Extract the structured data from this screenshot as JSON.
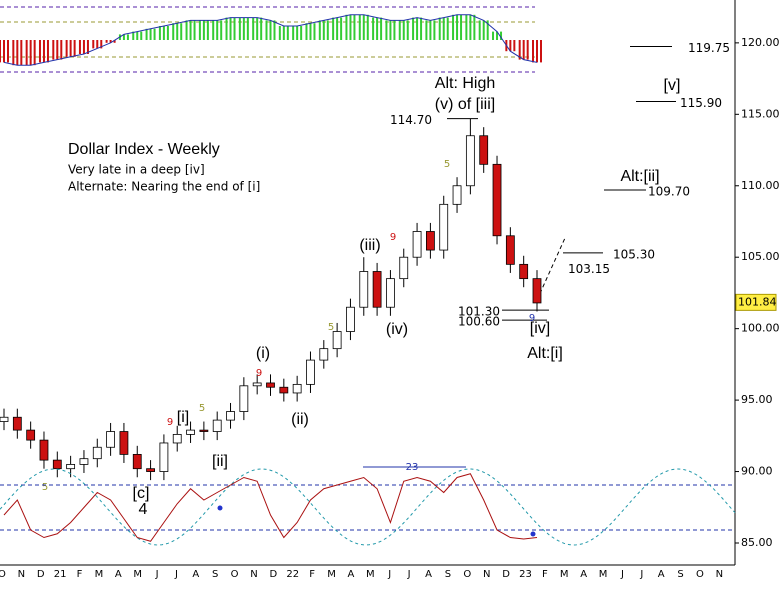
{
  "chart_data": {
    "type": "candlestick",
    "title": "Dollar Index - Weekly",
    "subtitle_lines": [
      "Very late in a deep [iv]",
      "Alternate: Nearing the end of [i]"
    ],
    "x_labels": [
      "O",
      "N",
      "D",
      "21",
      "F",
      "M",
      "A",
      "M",
      "J",
      "J",
      "A",
      "S",
      "O",
      "N",
      "D",
      "22",
      "F",
      "M",
      "A",
      "M",
      "J",
      "J",
      "A",
      "S",
      "O",
      "N",
      "D",
      "23",
      "F",
      "M",
      "A",
      "M",
      "J",
      "J",
      "A",
      "S",
      "O",
      "N"
    ],
    "candles": {
      "open": [
        93.5,
        93.8,
        92.9,
        92.2,
        90.8,
        90.2,
        90.5,
        90.9,
        91.7,
        92.8,
        91.2,
        90.2,
        90.0,
        92.0,
        92.6,
        92.9,
        92.8,
        93.6,
        94.2,
        96.0,
        96.2,
        95.9,
        95.5,
        96.1,
        97.8,
        98.6,
        99.8,
        101.5,
        104.0,
        101.5,
        103.5,
        105.0,
        106.8,
        105.5,
        108.7,
        110.0,
        113.5,
        111.5,
        106.5,
        104.5,
        103.5
      ],
      "high": [
        94.4,
        94.4,
        93.5,
        92.8,
        91.4,
        91.1,
        91.5,
        92.3,
        93.4,
        93.4,
        91.8,
        90.8,
        92.6,
        93.2,
        93.5,
        93.5,
        94.2,
        94.8,
        96.6,
        96.8,
        96.8,
        96.5,
        96.7,
        98.4,
        99.2,
        100.4,
        102.1,
        105.0,
        104.6,
        104.1,
        105.6,
        107.4,
        107.4,
        109.3,
        110.6,
        114.7,
        114.1,
        112.1,
        107.1,
        105.1,
        104.1
      ],
      "low": [
        92.9,
        92.3,
        91.6,
        90.2,
        89.6,
        89.6,
        89.9,
        90.3,
        91.1,
        90.6,
        89.6,
        89.4,
        89.4,
        91.4,
        92.0,
        92.2,
        92.2,
        93.0,
        93.6,
        95.4,
        95.3,
        94.9,
        94.9,
        95.5,
        97.2,
        98.0,
        99.2,
        100.9,
        100.9,
        100.9,
        102.9,
        104.4,
        104.9,
        104.9,
        108.1,
        109.4,
        110.9,
        105.9,
        103.9,
        102.9,
        101.2
      ],
      "close": [
        93.8,
        92.9,
        92.2,
        90.8,
        90.2,
        90.5,
        90.9,
        91.7,
        92.8,
        91.2,
        90.2,
        90.0,
        92.0,
        92.6,
        92.9,
        92.8,
        93.6,
        94.2,
        96.0,
        96.2,
        95.9,
        95.5,
        96.1,
        97.8,
        98.6,
        99.8,
        101.5,
        104.0,
        101.5,
        103.5,
        105.0,
        106.8,
        105.5,
        108.7,
        110.0,
        113.5,
        111.5,
        106.5,
        104.5,
        103.5,
        101.8
      ]
    },
    "up_color": "#ffffff",
    "down_color": "#cc1111",
    "ylim": [
      83.25,
      123.0
    ],
    "yticks": [
      {
        "value": 85,
        "label": "85.00"
      },
      {
        "value": 90,
        "label": "90.00"
      },
      {
        "value": 95,
        "label": "95.00"
      },
      {
        "value": 100,
        "label": "100.00"
      },
      {
        "value": 105,
        "label": "105.00"
      },
      {
        "value": 110,
        "label": "110.00"
      },
      {
        "value": 115,
        "label": "115.00"
      },
      {
        "value": 120,
        "label": "120.00"
      }
    ],
    "last_price": 101.84,
    "levels": [
      {
        "value": 119.75,
        "label": "119.75"
      },
      {
        "value": 115.9,
        "label": "115.90"
      },
      {
        "value": 109.7,
        "label": "109.70"
      },
      {
        "value": 105.3,
        "label": "105.30"
      },
      {
        "value": 103.15,
        "label": "103.15"
      },
      {
        "value": 101.3,
        "label": "101.30"
      },
      {
        "value": 100.6,
        "label": "100.60"
      },
      {
        "value": 114.7,
        "label": "114.70"
      }
    ],
    "annotations": [
      "Alt: High",
      "(v) of [iii]",
      "(i)",
      "(ii)",
      "(iii)",
      "(iv)",
      "[i]",
      "[ii]",
      "[c]",
      "4",
      "[iv]",
      "Alt:[i]",
      "Alt:[ii]",
      "[v]",
      "5",
      "9",
      "5",
      "9",
      "5",
      "9",
      "5",
      "9",
      "23"
    ],
    "top_indicator": {
      "values": [
        -0.8,
        -0.9,
        -0.9,
        -0.8,
        -0.7,
        -0.6,
        -0.5,
        -0.3,
        -0.1,
        0.2,
        0.3,
        0.4,
        0.5,
        0.6,
        0.7,
        0.7,
        0.7,
        0.8,
        0.8,
        0.8,
        0.7,
        0.5,
        0.5,
        0.6,
        0.7,
        0.8,
        0.9,
        0.9,
        0.8,
        0.7,
        0.7,
        0.8,
        0.7,
        0.8,
        0.9,
        0.9,
        0.7,
        0.3,
        -0.4,
        -0.7,
        -0.8
      ],
      "up_color": "#33cc33",
      "down_color": "#cc1111"
    },
    "oscillator": {
      "values": [
        40,
        60,
        20,
        10,
        15,
        30,
        50,
        70,
        60,
        35,
        10,
        5,
        30,
        55,
        75,
        60,
        70,
        80,
        90,
        85,
        40,
        10,
        30,
        60,
        75,
        80,
        85,
        90,
        75,
        30,
        85,
        90,
        85,
        70,
        90,
        95,
        60,
        20,
        10,
        8,
        10
      ],
      "levels": [
        80,
        20
      ],
      "ylim": [
        0,
        100
      ],
      "color": "#aa1111"
    }
  }
}
